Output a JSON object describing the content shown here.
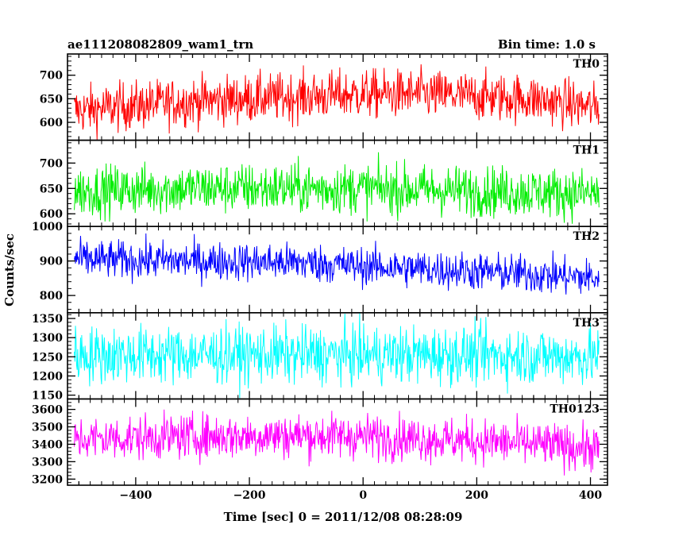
{
  "chart_data": {
    "type": "line",
    "title_left": "ae111208082809_wam1_trn",
    "title_right": "Bin time: 1.0 s",
    "ylabel": "Counts/sec",
    "xlabel": "Time [sec] 0 = 2011/12/08 08:28:09",
    "xlim": [
      -520,
      430
    ],
    "x_ticks": [
      -400,
      -200,
      0,
      200,
      400
    ],
    "x_tick_labels": [
      "−400",
      "−200",
      "0",
      "200",
      "400"
    ],
    "data_x_range": [
      -508,
      415
    ],
    "bin_time": 1.0,
    "panels": [
      {
        "name": "TH0",
        "color": "#ff0000",
        "ylim": [
          562,
          745
        ],
        "y_ticks": [
          600,
          650,
          700
        ],
        "y_tick_labels": [
          "600",
          "650",
          "700"
        ],
        "trend": [
          [
            -508,
            625
          ],
          [
            -300,
            645
          ],
          [
            -100,
            655
          ],
          [
            0,
            660
          ],
          [
            100,
            660
          ],
          [
            300,
            650
          ],
          [
            415,
            630
          ]
        ],
        "spread": 26
      },
      {
        "name": "TH1",
        "color": "#00ee00",
        "ylim": [
          575,
          745
        ],
        "y_ticks": [
          600,
          650,
          700
        ],
        "y_tick_labels": [
          "600",
          "650",
          "700"
        ],
        "trend": [
          [
            -508,
            645
          ],
          [
            -300,
            650
          ],
          [
            -100,
            650
          ],
          [
            0,
            650
          ],
          [
            200,
            645
          ],
          [
            415,
            640
          ]
        ],
        "spread": 25
      },
      {
        "name": "TH2",
        "color": "#0000ff",
        "ylim": [
          750,
          1000
        ],
        "y_ticks": [
          800,
          900,
          1000
        ],
        "y_tick_labels": [
          "800",
          "900",
          "1000"
        ],
        "trend": [
          [
            -508,
            905
          ],
          [
            -300,
            900
          ],
          [
            -100,
            895
          ],
          [
            0,
            885
          ],
          [
            200,
            870
          ],
          [
            415,
            850
          ]
        ],
        "spread": 28
      },
      {
        "name": "TH3",
        "color": "#00ffff",
        "ylim": [
          1140,
          1365
        ],
        "y_ticks": [
          1150,
          1200,
          1250,
          1300,
          1350
        ],
        "y_tick_labels": [
          "1150",
          "1200",
          "1250",
          "1300",
          "1350"
        ],
        "trend": [
          [
            -508,
            1255
          ],
          [
            -200,
            1255
          ],
          [
            0,
            1255
          ],
          [
            200,
            1255
          ],
          [
            415,
            1250
          ]
        ],
        "spread": 38
      },
      {
        "name": "TH0123",
        "color": "#ff00ff",
        "ylim": [
          3165,
          3660
        ],
        "y_ticks": [
          3200,
          3300,
          3400,
          3500,
          3600
        ],
        "y_tick_labels": [
          "3200",
          "3300",
          "3400",
          "3500",
          "3600"
        ],
        "trend": [
          [
            -508,
            3430
          ],
          [
            -300,
            3445
          ],
          [
            -100,
            3450
          ],
          [
            0,
            3445
          ],
          [
            200,
            3420
          ],
          [
            415,
            3375
          ]
        ],
        "spread": 65
      }
    ]
  }
}
